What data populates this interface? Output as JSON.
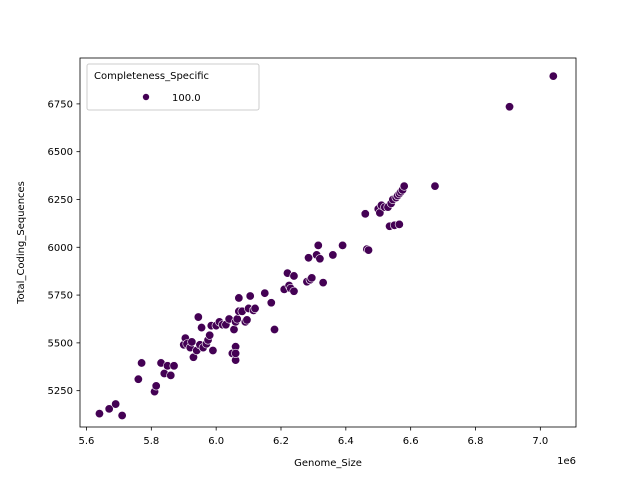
{
  "chart_data": {
    "type": "scatter",
    "xlabel": "Genome_Size",
    "ylabel": "Total_Coding_Sequences",
    "x_offset_label": "1e6",
    "xlim": [
      5.58,
      7.11
    ],
    "ylim": [
      5060,
      6990
    ],
    "x_ticks": [
      5.6,
      5.8,
      6.0,
      6.2,
      6.4,
      6.6,
      6.8,
      7.0
    ],
    "x_tick_labels": [
      "5.6",
      "5.8",
      "6.0",
      "6.2",
      "6.4",
      "6.6",
      "6.8",
      "7.0"
    ],
    "y_ticks": [
      5250,
      5500,
      5750,
      6000,
      6250,
      6500,
      6750
    ],
    "y_tick_labels": [
      "5250",
      "5500",
      "5750",
      "6000",
      "6250",
      "6500",
      "6750"
    ],
    "grid": false,
    "legend": {
      "title": "Completeness_Specific",
      "placement": "upper-left",
      "entries": [
        {
          "label": "100.0",
          "color": "#440154"
        }
      ]
    },
    "marker_color": "#440154",
    "marker_edge": "#ffffff",
    "series": [
      {
        "name": "100.0",
        "points": [
          [
            5.64,
            5130
          ],
          [
            5.67,
            5155
          ],
          [
            5.69,
            5180
          ],
          [
            5.71,
            5120
          ],
          [
            5.76,
            5310
          ],
          [
            5.77,
            5395
          ],
          [
            5.81,
            5245
          ],
          [
            5.815,
            5275
          ],
          [
            5.83,
            5395
          ],
          [
            5.84,
            5340
          ],
          [
            5.85,
            5380
          ],
          [
            5.86,
            5330
          ],
          [
            5.87,
            5380
          ],
          [
            5.9,
            5490
          ],
          [
            5.905,
            5525
          ],
          [
            5.91,
            5495
          ],
          [
            5.92,
            5475
          ],
          [
            5.925,
            5505
          ],
          [
            5.93,
            5425
          ],
          [
            5.94,
            5460
          ],
          [
            5.945,
            5635
          ],
          [
            5.95,
            5490
          ],
          [
            5.955,
            5580
          ],
          [
            5.96,
            5475
          ],
          [
            5.97,
            5495
          ],
          [
            5.975,
            5515
          ],
          [
            5.98,
            5540
          ],
          [
            5.985,
            5590
          ],
          [
            5.99,
            5460
          ],
          [
            6.0,
            5590
          ],
          [
            6.01,
            5610
          ],
          [
            6.02,
            5595
          ],
          [
            6.03,
            5595
          ],
          [
            6.04,
            5625
          ],
          [
            6.05,
            5445
          ],
          [
            6.055,
            5570
          ],
          [
            6.06,
            5480
          ],
          [
            6.06,
            5610
          ],
          [
            6.06,
            5410
          ],
          [
            6.06,
            5445
          ],
          [
            6.065,
            5625
          ],
          [
            6.07,
            5665
          ],
          [
            6.07,
            5735
          ],
          [
            6.08,
            5665
          ],
          [
            6.09,
            5610
          ],
          [
            6.095,
            5620
          ],
          [
            6.1,
            5680
          ],
          [
            6.105,
            5745
          ],
          [
            6.115,
            5670
          ],
          [
            6.12,
            5680
          ],
          [
            6.15,
            5760
          ],
          [
            6.17,
            5710
          ],
          [
            6.18,
            5570
          ],
          [
            6.21,
            5780
          ],
          [
            6.22,
            5865
          ],
          [
            6.225,
            5800
          ],
          [
            6.23,
            5785
          ],
          [
            6.24,
            5850
          ],
          [
            6.24,
            5770
          ],
          [
            6.28,
            5820
          ],
          [
            6.285,
            5945
          ],
          [
            6.29,
            5830
          ],
          [
            6.295,
            5840
          ],
          [
            6.31,
            5960
          ],
          [
            6.315,
            6010
          ],
          [
            6.32,
            5940
          ],
          [
            6.33,
            5815
          ],
          [
            6.36,
            5960
          ],
          [
            6.39,
            6010
          ],
          [
            6.46,
            6175
          ],
          [
            6.465,
            5990
          ],
          [
            6.47,
            5985
          ],
          [
            6.5,
            6200
          ],
          [
            6.505,
            6180
          ],
          [
            6.51,
            6220
          ],
          [
            6.52,
            6210
          ],
          [
            6.53,
            6210
          ],
          [
            6.535,
            6110
          ],
          [
            6.54,
            6230
          ],
          [
            6.545,
            6250
          ],
          [
            6.55,
            6115
          ],
          [
            6.555,
            6260
          ],
          [
            6.56,
            6270
          ],
          [
            6.565,
            6280
          ],
          [
            6.565,
            6120
          ],
          [
            6.57,
            6290
          ],
          [
            6.575,
            6300
          ],
          [
            6.58,
            6320
          ],
          [
            6.675,
            6320
          ],
          [
            6.905,
            6735
          ],
          [
            7.04,
            6895
          ]
        ]
      }
    ]
  }
}
